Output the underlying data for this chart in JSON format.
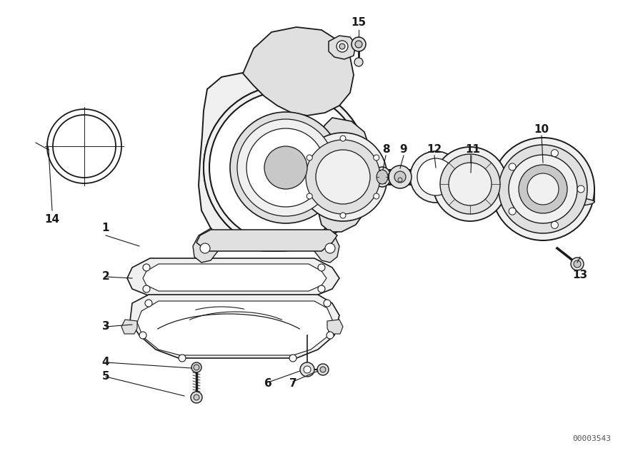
{
  "background_color": "#ffffff",
  "line_color": "#1a1a1a",
  "watermark": "00003543",
  "fig_width": 9.0,
  "fig_height": 6.35,
  "dpi": 100
}
